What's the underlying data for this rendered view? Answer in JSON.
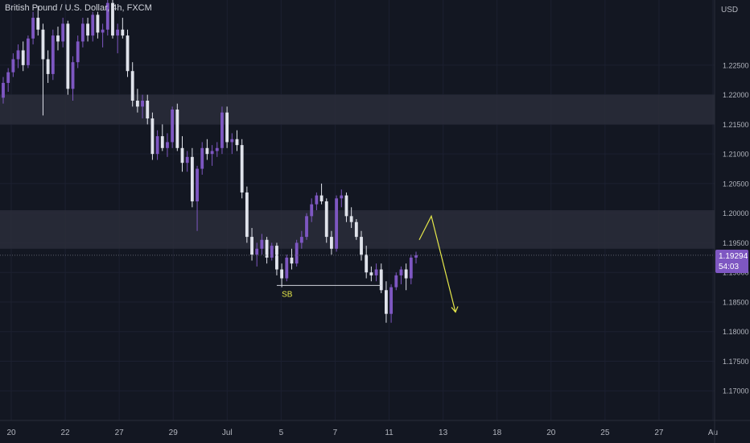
{
  "header": {
    "title": "British Pound / U.S. Dollar, 4h, FXCM"
  },
  "price_axis": {
    "currency": "USD"
  },
  "last_price": {
    "value": "1.19294",
    "countdown": "54:03"
  },
  "colors": {
    "background": "#131722",
    "up_candle": "#7e57c2",
    "down_candle": "#e0e3eb",
    "zone": "#2a2d3a",
    "annotation": "#e6e84a",
    "grid": "#1c2030"
  },
  "chart_data": {
    "type": "candlestick",
    "y_axis": {
      "ylim": [
        1.165,
        1.236
      ],
      "ticks": [
        "1.22500",
        "1.22000",
        "1.21500",
        "1.21000",
        "1.20500",
        "1.20000",
        "1.19500",
        "1.19000",
        "1.18500",
        "1.18000",
        "1.17500",
        "1.17000"
      ]
    },
    "x_axis": {
      "ticks": [
        "20",
        "22",
        "27",
        "29",
        "Jul",
        "5",
        "7",
        "11",
        "13",
        "18",
        "20",
        "25",
        "27",
        "Au"
      ]
    },
    "zones": [
      {
        "from": 1.215,
        "to": 1.22
      },
      {
        "from": 1.194,
        "to": 1.2005
      }
    ],
    "annotation_label": "SB",
    "candles": [
      [
        1.2195,
        1.223,
        1.2185,
        1.222
      ],
      [
        1.222,
        1.2245,
        1.2205,
        1.2238
      ],
      [
        1.2238,
        1.227,
        1.223,
        1.226
      ],
      [
        1.226,
        1.2285,
        1.2245,
        1.2275
      ],
      [
        1.2275,
        1.229,
        1.224,
        1.225
      ],
      [
        1.225,
        1.23,
        1.2245,
        1.2295
      ],
      [
        1.2295,
        1.234,
        1.2285,
        1.233
      ],
      [
        1.233,
        1.235,
        1.23,
        1.231
      ],
      [
        1.231,
        1.232,
        1.2165,
        1.226
      ],
      [
        1.226,
        1.2275,
        1.222,
        1.2235
      ],
      [
        1.2235,
        1.231,
        1.2225,
        1.23
      ],
      [
        1.23,
        1.2315,
        1.2275,
        1.229
      ],
      [
        1.229,
        1.233,
        1.228,
        1.232
      ],
      [
        1.232,
        1.2325,
        1.22,
        1.221
      ],
      [
        1.221,
        1.2265,
        1.219,
        1.2255
      ],
      [
        1.2255,
        1.23,
        1.2245,
        1.229
      ],
      [
        1.229,
        1.233,
        1.228,
        1.232
      ],
      [
        1.232,
        1.233,
        1.229,
        1.23
      ],
      [
        1.23,
        1.234,
        1.229,
        1.2335
      ],
      [
        1.2335,
        1.234,
        1.2295,
        1.2305
      ],
      [
        1.2305,
        1.232,
        1.228,
        1.231
      ],
      [
        1.231,
        1.236,
        1.23,
        1.2355
      ],
      [
        1.2355,
        1.236,
        1.2295,
        1.23
      ],
      [
        1.23,
        1.232,
        1.227,
        1.231
      ],
      [
        1.231,
        1.233,
        1.2295,
        1.23
      ],
      [
        1.23,
        1.231,
        1.223,
        1.224
      ],
      [
        1.224,
        1.2255,
        1.218,
        1.219
      ],
      [
        1.219,
        1.221,
        1.217,
        1.218
      ],
      [
        1.218,
        1.22,
        1.216,
        1.219
      ],
      [
        1.219,
        1.22,
        1.215,
        1.216
      ],
      [
        1.216,
        1.217,
        1.209,
        1.21
      ],
      [
        1.21,
        1.214,
        1.209,
        1.213
      ],
      [
        1.213,
        1.215,
        1.2105,
        1.211
      ],
      [
        1.211,
        1.2135,
        1.2095,
        1.212
      ],
      [
        1.212,
        1.218,
        1.211,
        1.2175
      ],
      [
        1.2175,
        1.2185,
        1.2105,
        1.211
      ],
      [
        1.211,
        1.213,
        1.207,
        1.2085
      ],
      [
        1.2085,
        1.2105,
        1.207,
        1.2095
      ],
      [
        1.2095,
        1.211,
        1.201,
        1.202
      ],
      [
        1.202,
        1.208,
        1.197,
        1.2075
      ],
      [
        1.2075,
        1.212,
        1.2065,
        1.211
      ],
      [
        1.211,
        1.2125,
        1.209,
        1.21
      ],
      [
        1.21,
        1.2115,
        1.208,
        1.2105
      ],
      [
        1.2105,
        1.212,
        1.2095,
        1.211
      ],
      [
        1.211,
        1.218,
        1.21,
        1.217
      ],
      [
        1.217,
        1.218,
        1.211,
        1.212
      ],
      [
        1.212,
        1.2135,
        1.21,
        1.2125
      ],
      [
        1.2125,
        1.214,
        1.2105,
        1.2115
      ],
      [
        1.2115,
        1.2125,
        1.2025,
        1.2035
      ],
      [
        1.2035,
        1.2045,
        1.195,
        1.196
      ],
      [
        1.196,
        1.1975,
        1.192,
        1.193
      ],
      [
        1.193,
        1.195,
        1.191,
        1.194
      ],
      [
        1.194,
        1.1965,
        1.193,
        1.1955
      ],
      [
        1.1955,
        1.196,
        1.1915,
        1.1925
      ],
      [
        1.1925,
        1.195,
        1.192,
        1.1945
      ],
      [
        1.1945,
        1.195,
        1.1895,
        1.1905
      ],
      [
        1.1905,
        1.1915,
        1.1875,
        1.189
      ],
      [
        1.189,
        1.193,
        1.1885,
        1.1925
      ],
      [
        1.1925,
        1.194,
        1.1905,
        1.1915
      ],
      [
        1.1915,
        1.1955,
        1.191,
        1.195
      ],
      [
        1.195,
        1.197,
        1.194,
        1.196
      ],
      [
        1.196,
        1.2,
        1.1955,
        1.1995
      ],
      [
        1.1995,
        1.2025,
        1.1985,
        1.2015
      ],
      [
        1.2015,
        1.2035,
        1.2005,
        1.203
      ],
      [
        1.203,
        1.205,
        1.2015,
        1.202
      ],
      [
        1.202,
        1.2025,
        1.195,
        1.196
      ],
      [
        1.196,
        1.197,
        1.193,
        1.194
      ],
      [
        1.194,
        1.203,
        1.1935,
        1.2025
      ],
      [
        1.2025,
        1.204,
        1.201,
        1.203
      ],
      [
        1.203,
        1.2035,
        1.1985,
        1.1995
      ],
      [
        1.1995,
        1.201,
        1.1975,
        1.1985
      ],
      [
        1.1985,
        1.199,
        1.1955,
        1.196
      ],
      [
        1.196,
        1.197,
        1.192,
        1.193
      ],
      [
        1.193,
        1.1945,
        1.189,
        1.19
      ],
      [
        1.19,
        1.191,
        1.1885,
        1.1895
      ],
      [
        1.1895,
        1.1915,
        1.1885,
        1.1905
      ],
      [
        1.1905,
        1.1915,
        1.1865,
        1.187
      ],
      [
        1.187,
        1.1885,
        1.1815,
        1.183
      ],
      [
        1.183,
        1.188,
        1.1815,
        1.1875
      ],
      [
        1.1875,
        1.19,
        1.187,
        1.1895
      ],
      [
        1.1895,
        1.191,
        1.188,
        1.1905
      ],
      [
        1.1905,
        1.1915,
        1.187,
        1.189
      ],
      [
        1.189,
        1.193,
        1.188,
        1.1925
      ],
      [
        1.1925,
        1.1935,
        1.1915,
        1.1929
      ]
    ]
  }
}
